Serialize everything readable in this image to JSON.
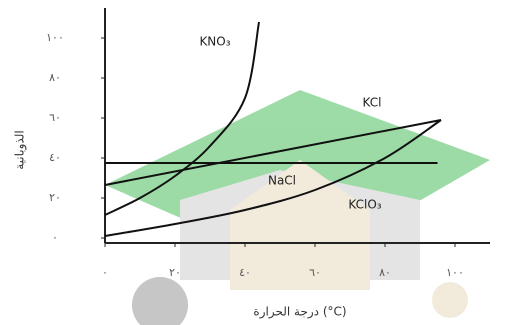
{
  "chart_data": {
    "type": "line",
    "xlabel": "درجة الحرارة (°C)",
    "ylabel": "الذوبانية",
    "xlim": [
      0,
      110
    ],
    "ylim": [
      -2.5,
      114
    ],
    "xticks": [
      {
        "value": 0,
        "label": "٠"
      },
      {
        "value": 20,
        "label": "٢٠"
      },
      {
        "value": 40,
        "label": "٤٠"
      },
      {
        "value": 60,
        "label": "٦٠"
      },
      {
        "value": 80,
        "label": "٨٠"
      },
      {
        "value": 100,
        "label": "١٠٠"
      }
    ],
    "yticks": [
      {
        "value": 0,
        "label": "٠"
      },
      {
        "value": 20,
        "label": "٢٠"
      },
      {
        "value": 40,
        "label": "٤٠"
      },
      {
        "value": 60,
        "label": "٦٠"
      },
      {
        "value": 80,
        "label": "٨٠"
      },
      {
        "value": 100,
        "label": "١٠٠"
      }
    ],
    "series": [
      {
        "name": "KNO₃",
        "color": "#111111",
        "x": [
          0,
          10,
          20,
          30,
          40,
          44
        ],
        "values": [
          11.5,
          20,
          31,
          46,
          70,
          108
        ]
      },
      {
        "name": "KCl",
        "color": "#111111",
        "x": [
          0,
          96
        ],
        "values": [
          26.5,
          59
        ]
      },
      {
        "name": "NaCl",
        "color": "#111111",
        "x": [
          0,
          95
        ],
        "values": [
          37.5,
          37.5
        ]
      },
      {
        "name": "KClO₃",
        "color": "#111111",
        "x": [
          0,
          20,
          40,
          60,
          80,
          96
        ],
        "values": [
          1,
          7,
          14,
          24,
          40,
          59
        ]
      }
    ]
  }
}
